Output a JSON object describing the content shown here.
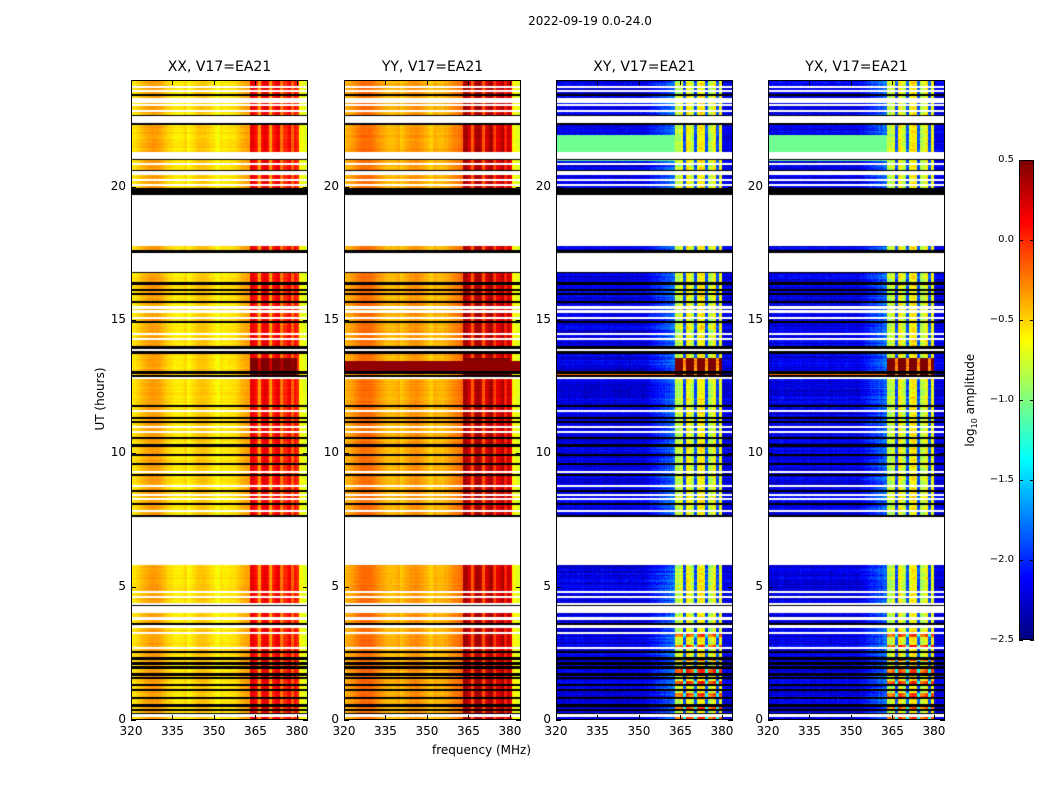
{
  "chart_data": {
    "type": "heatmap",
    "title": "2022-09-19 0.0-24.0",
    "xlabel": "frequency (MHz)",
    "ylabel": "UT (hours)",
    "xlim": [
      320,
      384
    ],
    "ylim": [
      0,
      24
    ],
    "xticks": [
      "320",
      "335",
      "350",
      "365",
      "380"
    ],
    "xtick_values": [
      320,
      335,
      350,
      365,
      380
    ],
    "yticks": [
      "0",
      "5",
      "10",
      "15",
      "20"
    ],
    "ytick_values": [
      0,
      5,
      10,
      15,
      20
    ],
    "colormap": "jet",
    "colorbar": {
      "label": "log10 amplitude",
      "label_main": "log",
      "label_sub": "10",
      "label_rest": " amplitude",
      "range": [
        -2.5,
        0.5
      ],
      "ticks": [
        "0.5",
        "0.0",
        "−0.5",
        "−1.0",
        "−1.5",
        "−2.0",
        "−2.5"
      ],
      "tick_values": [
        0.5,
        0.0,
        -0.5,
        -1.0,
        -1.5,
        -2.0,
        -2.5
      ]
    },
    "panels": [
      {
        "title": "XX, V17=EA21",
        "polarization": "XX",
        "kind": "parallel",
        "level_low_freq": -0.45,
        "level_high_freq": 0.1
      },
      {
        "title": "YY, V17=EA21",
        "polarization": "YY",
        "kind": "parallel",
        "level_low_freq": -0.3,
        "level_high_freq": 0.3
      },
      {
        "title": "XY, V17=EA21",
        "polarization": "XY",
        "kind": "cross",
        "level_low_freq": -2.2,
        "level_high_freq": -0.7
      },
      {
        "title": "YX, V17=EA21",
        "polarization": "YX",
        "kind": "cross",
        "level_low_freq": -2.2,
        "level_high_freq": -0.7
      }
    ],
    "strong_rfi_band_mhz": [
      363,
      380
    ],
    "flagged_intervals_ut": [
      [
        19.75,
        20.0
      ],
      [
        7.5,
        7.6
      ],
      [
        16.1,
        16.25
      ]
    ],
    "blank_intervals_ut": [
      [
        17.9,
        19.75
      ],
      [
        7.6,
        5.8
      ],
      [
        4.25,
        4.0
      ],
      [
        22.45,
        22.7
      ],
      [
        16.8,
        17.6
      ]
    ],
    "notable_rfi_ut": [
      13.0,
      13.4
    ]
  }
}
